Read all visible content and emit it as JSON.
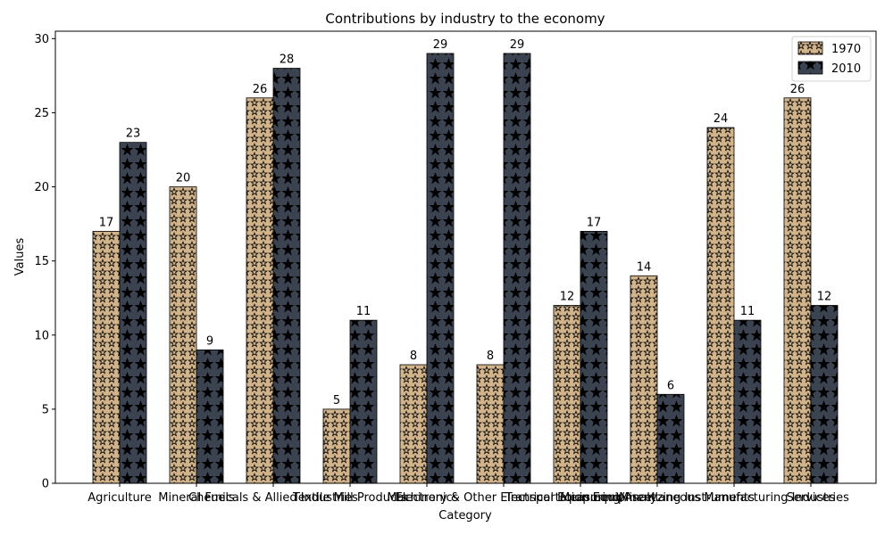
{
  "chart_data": {
    "type": "bar",
    "title": "Contributions by industry to the economy",
    "xlabel": "Category",
    "ylabel": "Values",
    "ylim": [
      0,
      30.5
    ],
    "yticks": [
      0,
      5,
      10,
      15,
      20,
      25,
      30
    ],
    "categories": [
      "Agriculture",
      "Mineral Fuels",
      "Chemicals & Allied Industries",
      "Textile Mill Products",
      "Electronics",
      "Machinery & Other Electrical Equipment",
      "Transportation Equipment",
      "Measuring/Analyzing Instruments",
      "Miscellaneous Manufacturing Industries",
      "Services"
    ],
    "series": [
      {
        "name": "1970",
        "values": [
          17,
          20,
          26,
          5,
          8,
          8,
          12,
          14,
          24,
          26
        ],
        "color": "#d2b48c",
        "pattern": "small-stars"
      },
      {
        "name": "2010",
        "values": [
          23,
          9,
          28,
          11,
          29,
          29,
          17,
          6,
          11,
          12
        ],
        "color": "#3c4350",
        "pattern": "large-stars"
      }
    ],
    "legend_position": "top-right",
    "grid": false
  }
}
